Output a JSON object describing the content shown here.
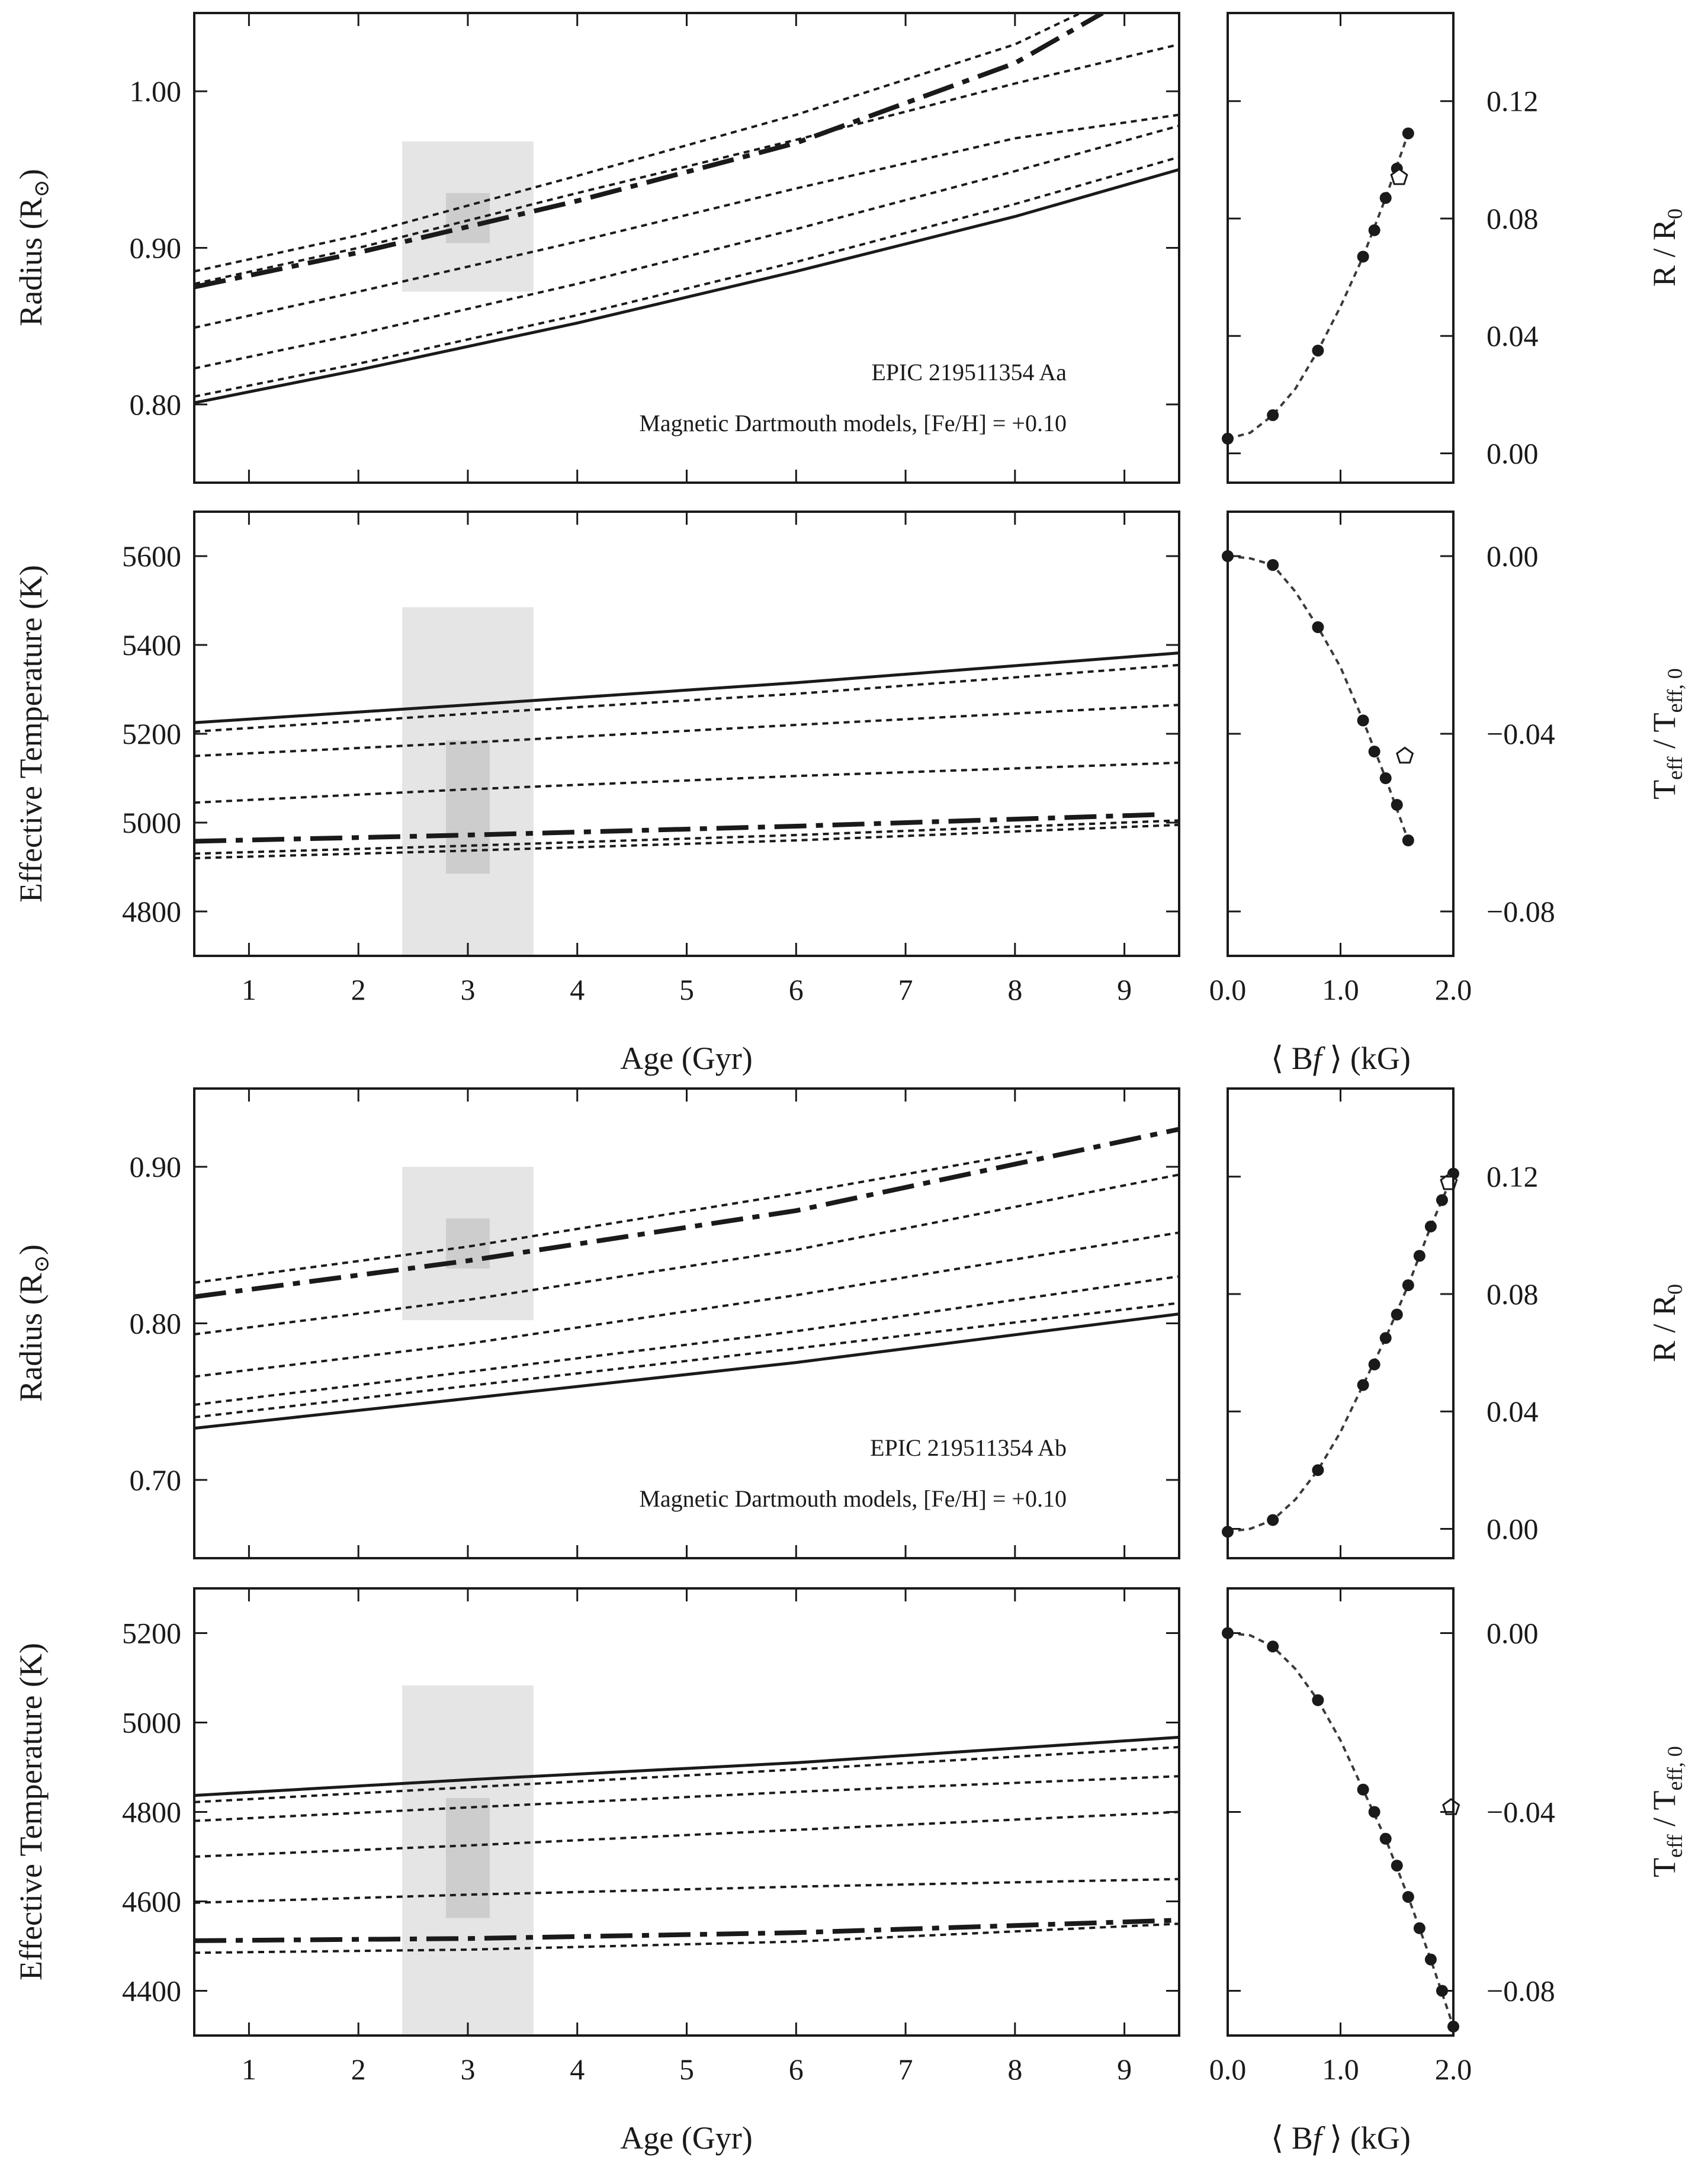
{
  "chart_data": [
    {
      "id": "aa_radius",
      "type": "line",
      "xlim": [
        0.5,
        9.5
      ],
      "ylim": [
        0.75,
        1.05
      ],
      "xticks": [
        1,
        2,
        3,
        4,
        5,
        6,
        7,
        8,
        9
      ],
      "yticks": [
        0.8,
        0.9,
        1.0
      ],
      "ytick_labels": [
        "0.80",
        "0.90",
        "1.00"
      ],
      "ylabel_main": "Radius (R",
      "ylabel_sub": "⊙",
      "ylabel_close": ")",
      "annotation_star": "EPIC 219511354 Aa",
      "annotation_models": "Magnetic Dartmouth models, [Fe/H] = +0.10",
      "box_outer": {
        "x": [
          2.4,
          3.6
        ],
        "y": [
          0.872,
          0.968
        ]
      },
      "box_inner": {
        "x": [
          2.8,
          3.2
        ],
        "y": [
          0.903,
          0.935
        ]
      },
      "series": [
        {
          "name": "non-magnetic",
          "style": "solid",
          "x": [
            0.5,
            2,
            4,
            6,
            8,
            9.5
          ],
          "y": [
            0.801,
            0.822,
            0.852,
            0.885,
            0.92,
            0.95
          ]
        },
        {
          "name": "magnetic-1",
          "style": "dotted",
          "x": [
            0.5,
            2,
            4,
            6,
            8,
            9.5
          ],
          "y": [
            0.805,
            0.826,
            0.857,
            0.891,
            0.928,
            0.958
          ]
        },
        {
          "name": "magnetic-2",
          "style": "dotted",
          "x": [
            0.5,
            2,
            4,
            6,
            8,
            9.5
          ],
          "y": [
            0.823,
            0.845,
            0.877,
            0.912,
            0.949,
            0.978
          ]
        },
        {
          "name": "magnetic-3",
          "style": "dotted",
          "x": [
            0.5,
            2,
            4,
            6,
            8,
            9.5
          ],
          "y": [
            0.849,
            0.872,
            0.904,
            0.938,
            0.97,
            0.985
          ]
        },
        {
          "name": "magnetic-4",
          "style": "dotted",
          "x": [
            0.5,
            2,
            4,
            6,
            8,
            9.5
          ],
          "y": [
            0.877,
            0.9,
            0.935,
            0.969,
            1.005,
            1.03
          ]
        },
        {
          "name": "best-fit",
          "style": "dashdot",
          "x": [
            0.5,
            2,
            4,
            6,
            8,
            8.8
          ],
          "y": [
            0.875,
            0.897,
            0.93,
            0.967,
            1.018,
            1.05
          ]
        },
        {
          "name": "magnetic-5",
          "style": "dotted",
          "x": [
            0.5,
            2,
            4,
            6,
            8,
            8.6
          ],
          "y": [
            0.885,
            0.908,
            0.946,
            0.985,
            1.03,
            1.05
          ]
        }
      ]
    },
    {
      "id": "aa_radius_bf",
      "type": "scatter",
      "xlim": [
        0.0,
        2.0
      ],
      "ylim": [
        -0.01,
        0.15
      ],
      "xticks": [
        0.0,
        1.0,
        2.0
      ],
      "xtick_labels": [
        "0.0",
        "1.0",
        "2.0"
      ],
      "yticks": [
        0.0,
        0.04,
        0.08,
        0.12
      ],
      "ytick_labels": [
        "0.00",
        "0.04",
        "0.08",
        "0.12"
      ],
      "ylabel_r": "R / R",
      "ylabel_sub": "0",
      "points": {
        "x": [
          0.0,
          0.4,
          0.8,
          1.2,
          1.3,
          1.4,
          1.5,
          1.6
        ],
        "y": [
          0.005,
          0.013,
          0.035,
          0.067,
          0.076,
          0.087,
          0.097,
          0.109
        ]
      },
      "fit": {
        "x": [
          0.0,
          0.2,
          0.4,
          0.6,
          0.8,
          1.0,
          1.2,
          1.4,
          1.6
        ],
        "y": [
          0.005,
          0.007,
          0.013,
          0.022,
          0.035,
          0.05,
          0.067,
          0.087,
          0.109
        ]
      },
      "observed": {
        "x": [
          1.52
        ],
        "y": [
          0.094
        ]
      }
    },
    {
      "id": "aa_teff",
      "type": "line",
      "xlim": [
        0.5,
        9.5
      ],
      "ylim": [
        4700,
        5700
      ],
      "xticks": [
        1,
        2,
        3,
        4,
        5,
        6,
        7,
        8,
        9
      ],
      "xtick_labels": [
        "1",
        "2",
        "3",
        "4",
        "5",
        "6",
        "7",
        "8",
        "9"
      ],
      "yticks": [
        4800,
        5000,
        5200,
        5400,
        5600
      ],
      "ytick_labels": [
        "4800",
        "5000",
        "5200",
        "5400",
        "5600"
      ],
      "ylabel": "Effective Temperature (K)",
      "xlabel": "Age (Gyr)",
      "box_outer": {
        "x": [
          2.4,
          3.6
        ],
        "y": [
          4700,
          5485
        ]
      },
      "box_inner": {
        "x": [
          2.8,
          3.2
        ],
        "y": [
          4885,
          5185
        ]
      },
      "series": [
        {
          "name": "non-magnetic",
          "style": "solid",
          "x": [
            0.5,
            3,
            6,
            9.5
          ],
          "y": [
            5225,
            5265,
            5315,
            5382
          ]
        },
        {
          "name": "magnetic-1",
          "style": "dotted",
          "x": [
            0.5,
            3,
            6,
            9.5
          ],
          "y": [
            5205,
            5245,
            5290,
            5355
          ]
        },
        {
          "name": "magnetic-2",
          "style": "dotted",
          "x": [
            0.5,
            3,
            6,
            9.5
          ],
          "y": [
            5150,
            5180,
            5220,
            5265
          ]
        },
        {
          "name": "magnetic-3",
          "style": "dotted",
          "x": [
            0.5,
            3,
            6,
            9.5
          ],
          "y": [
            5045,
            5075,
            5105,
            5135
          ]
        },
        {
          "name": "best-fit",
          "style": "dashdot",
          "x": [
            0.5,
            3,
            6,
            9.3
          ],
          "y": [
            4958,
            4972,
            4992,
            5018
          ]
        },
        {
          "name": "magnetic-4",
          "style": "dotted",
          "x": [
            0.5,
            3,
            6,
            9.5
          ],
          "y": [
            4920,
            4937,
            4960,
            4995
          ]
        },
        {
          "name": "magnetic-5",
          "style": "dotted",
          "x": [
            0.5,
            3,
            6,
            9.5
          ],
          "y": [
            4930,
            4948,
            4972,
            5005
          ]
        }
      ]
    },
    {
      "id": "aa_teff_bf",
      "type": "scatter",
      "xlim": [
        0.0,
        2.0
      ],
      "ylim": [
        -0.09,
        0.01
      ],
      "xticks": [
        0.0,
        1.0,
        2.0
      ],
      "xtick_labels": [
        "0.0",
        "1.0",
        "2.0"
      ],
      "yticks": [
        0.0,
        -0.04,
        -0.08
      ],
      "ytick_labels": [
        "0.00",
        "−0.04",
        "−0.08"
      ],
      "ylabel_t": "T",
      "ylabel_sub1": "eff",
      "ylabel_mid": " / T",
      "ylabel_sub2": "eff, 0",
      "xlabel_l": "⟨ B",
      "xlabel_f": "f",
      "xlabel_r": " ⟩ (kG)",
      "points": {
        "x": [
          0.0,
          0.4,
          0.8,
          1.2,
          1.3,
          1.4,
          1.5,
          1.6
        ],
        "y": [
          0.0,
          -0.002,
          -0.016,
          -0.037,
          -0.044,
          -0.05,
          -0.056,
          -0.064
        ]
      },
      "fit": {
        "x": [
          0.0,
          0.2,
          0.4,
          0.6,
          0.8,
          1.0,
          1.2,
          1.4,
          1.6
        ],
        "y": [
          0.0,
          -0.0005,
          -0.002,
          -0.008,
          -0.016,
          -0.025,
          -0.037,
          -0.05,
          -0.064
        ]
      },
      "observed": {
        "x": [
          1.57
        ],
        "y": [
          -0.045
        ]
      }
    },
    {
      "id": "ab_radius",
      "type": "line",
      "xlim": [
        0.5,
        9.5
      ],
      "ylim": [
        0.65,
        0.95
      ],
      "xticks": [
        1,
        2,
        3,
        4,
        5,
        6,
        7,
        8,
        9
      ],
      "yticks": [
        0.7,
        0.8,
        0.9
      ],
      "ytick_labels": [
        "0.70",
        "0.80",
        "0.90"
      ],
      "ylabel_main": "Radius (R",
      "ylabel_sub": "⊙",
      "ylabel_close": ")",
      "annotation_star": "EPIC 219511354 Ab",
      "annotation_models": "Magnetic Dartmouth models, [Fe/H] = +0.10",
      "box_outer": {
        "x": [
          2.4,
          3.6
        ],
        "y": [
          0.802,
          0.9
        ]
      },
      "box_inner": {
        "x": [
          2.8,
          3.2
        ],
        "y": [
          0.835,
          0.867
        ]
      },
      "series": [
        {
          "name": "non-magnetic",
          "style": "solid",
          "x": [
            0.5,
            3,
            6,
            9.5
          ],
          "y": [
            0.733,
            0.752,
            0.775,
            0.806
          ]
        },
        {
          "name": "magnetic-1",
          "style": "dotted",
          "x": [
            0.5,
            3,
            6,
            9.5
          ],
          "y": [
            0.74,
            0.76,
            0.784,
            0.813
          ]
        },
        {
          "name": "magnetic-2",
          "style": "dotted",
          "x": [
            0.5,
            3,
            6,
            9.5
          ],
          "y": [
            0.748,
            0.769,
            0.795,
            0.83
          ]
        },
        {
          "name": "magnetic-3",
          "style": "dotted",
          "x": [
            0.5,
            3,
            6,
            9.5
          ],
          "y": [
            0.766,
            0.787,
            0.818,
            0.858
          ]
        },
        {
          "name": "magnetic-4",
          "style": "dotted",
          "x": [
            0.5,
            3,
            6,
            9.5
          ],
          "y": [
            0.793,
            0.815,
            0.847,
            0.895
          ]
        },
        {
          "name": "best-fit",
          "style": "dashdot",
          "x": [
            0.5,
            3,
            6,
            9.5
          ],
          "y": [
            0.817,
            0.84,
            0.872,
            0.924
          ]
        },
        {
          "name": "magnetic-5",
          "style": "dotted",
          "x": [
            0.5,
            3,
            6,
            8.2
          ],
          "y": [
            0.826,
            0.849,
            0.883,
            0.91
          ]
        }
      ]
    },
    {
      "id": "ab_radius_bf",
      "type": "scatter",
      "xlim": [
        0.0,
        2.0
      ],
      "ylim": [
        -0.01,
        0.15
      ],
      "xticks": [
        0.0,
        1.0,
        2.0
      ],
      "xtick_labels": [
        "0.0",
        "1.0",
        "2.0"
      ],
      "yticks": [
        0.0,
        0.04,
        0.08,
        0.12
      ],
      "ytick_labels": [
        "0.00",
        "0.04",
        "0.08",
        "0.12"
      ],
      "ylabel_r": "R / R",
      "ylabel_sub": "0",
      "points": {
        "x": [
          0.0,
          0.4,
          0.8,
          1.2,
          1.3,
          1.4,
          1.5,
          1.6,
          1.7,
          1.8,
          1.9,
          2.0
        ],
        "y": [
          -0.001,
          0.003,
          0.02,
          0.049,
          0.056,
          0.065,
          0.073,
          0.083,
          0.093,
          0.103,
          0.112,
          0.121
        ]
      },
      "fit": {
        "x": [
          0.0,
          0.2,
          0.4,
          0.6,
          0.8,
          1.0,
          1.2,
          1.4,
          1.6,
          1.8,
          2.0
        ],
        "y": [
          -0.001,
          0.0,
          0.003,
          0.01,
          0.02,
          0.033,
          0.049,
          0.065,
          0.083,
          0.103,
          0.121
        ]
      },
      "observed": {
        "x": [
          1.96
        ],
        "y": [
          0.118
        ]
      }
    },
    {
      "id": "ab_teff",
      "type": "line",
      "xlim": [
        0.5,
        9.5
      ],
      "ylim": [
        4300,
        5300
      ],
      "xticks": [
        1,
        2,
        3,
        4,
        5,
        6,
        7,
        8,
        9
      ],
      "xtick_labels": [
        "1",
        "2",
        "3",
        "4",
        "5",
        "6",
        "7",
        "8",
        "9"
      ],
      "yticks": [
        4400,
        4600,
        4800,
        5000,
        5200
      ],
      "ytick_labels": [
        "4400",
        "4600",
        "4800",
        "5000",
        "5200"
      ],
      "ylabel": "Effective Temperature (K)",
      "xlabel": "Age (Gyr)",
      "box_outer": {
        "x": [
          2.4,
          3.6
        ],
        "y": [
          4300,
          5083
        ]
      },
      "box_inner": {
        "x": [
          2.8,
          3.2
        ],
        "y": [
          4563,
          4831
        ]
      },
      "series": [
        {
          "name": "non-magnetic",
          "style": "solid",
          "x": [
            0.5,
            3,
            6,
            9.5
          ],
          "y": [
            4837,
            4872,
            4910,
            4967
          ]
        },
        {
          "name": "magnetic-1",
          "style": "dotted",
          "x": [
            0.5,
            3,
            6,
            9.5
          ],
          "y": [
            4822,
            4855,
            4895,
            4945
          ]
        },
        {
          "name": "magnetic-2",
          "style": "dotted",
          "x": [
            0.5,
            3,
            6,
            9.5
          ],
          "y": [
            4780,
            4810,
            4845,
            4880
          ]
        },
        {
          "name": "magnetic-3",
          "style": "dotted",
          "x": [
            0.5,
            3,
            6,
            9.5
          ],
          "y": [
            4700,
            4725,
            4760,
            4800
          ]
        },
        {
          "name": "magnetic-4",
          "style": "dotted",
          "x": [
            0.5,
            3,
            6,
            9.5
          ],
          "y": [
            4597,
            4615,
            4633,
            4650
          ]
        },
        {
          "name": "best-fit",
          "style": "dashdot",
          "x": [
            0.5,
            3,
            6,
            9.5
          ],
          "y": [
            4512,
            4517,
            4530,
            4558
          ]
        },
        {
          "name": "magnetic-5",
          "style": "dotted",
          "x": [
            0.5,
            3,
            6,
            9.5
          ],
          "y": [
            4485,
            4492,
            4510,
            4550
          ]
        }
      ]
    },
    {
      "id": "ab_teff_bf",
      "type": "scatter",
      "xlim": [
        0.0,
        2.0
      ],
      "ylim": [
        -0.09,
        0.01
      ],
      "xticks": [
        0.0,
        1.0,
        2.0
      ],
      "xtick_labels": [
        "0.0",
        "1.0",
        "2.0"
      ],
      "yticks": [
        0.0,
        -0.04,
        -0.08
      ],
      "ytick_labels": [
        "0.00",
        "−0.04",
        "−0.08"
      ],
      "ylabel_t": "T",
      "ylabel_sub1": "eff",
      "ylabel_mid": " / T",
      "ylabel_sub2": "eff, 0",
      "xlabel_l": "⟨ B",
      "xlabel_f": "f",
      "xlabel_r": " ⟩ (kG)",
      "points": {
        "x": [
          0.0,
          0.4,
          0.8,
          1.2,
          1.3,
          1.4,
          1.5,
          1.6,
          1.7,
          1.8,
          1.9,
          2.0
        ],
        "y": [
          0.0,
          -0.003,
          -0.015,
          -0.035,
          -0.04,
          -0.046,
          -0.052,
          -0.059,
          -0.066,
          -0.073,
          -0.08,
          -0.088
        ]
      },
      "fit": {
        "x": [
          0.0,
          0.2,
          0.4,
          0.6,
          0.8,
          1.0,
          1.2,
          1.4,
          1.6,
          1.8,
          2.0
        ],
        "y": [
          0.0,
          -0.0005,
          -0.003,
          -0.008,
          -0.015,
          -0.024,
          -0.035,
          -0.046,
          -0.059,
          -0.073,
          -0.088
        ]
      },
      "observed": {
        "x": [
          1.98
        ],
        "y": [
          -0.039
        ]
      }
    }
  ]
}
